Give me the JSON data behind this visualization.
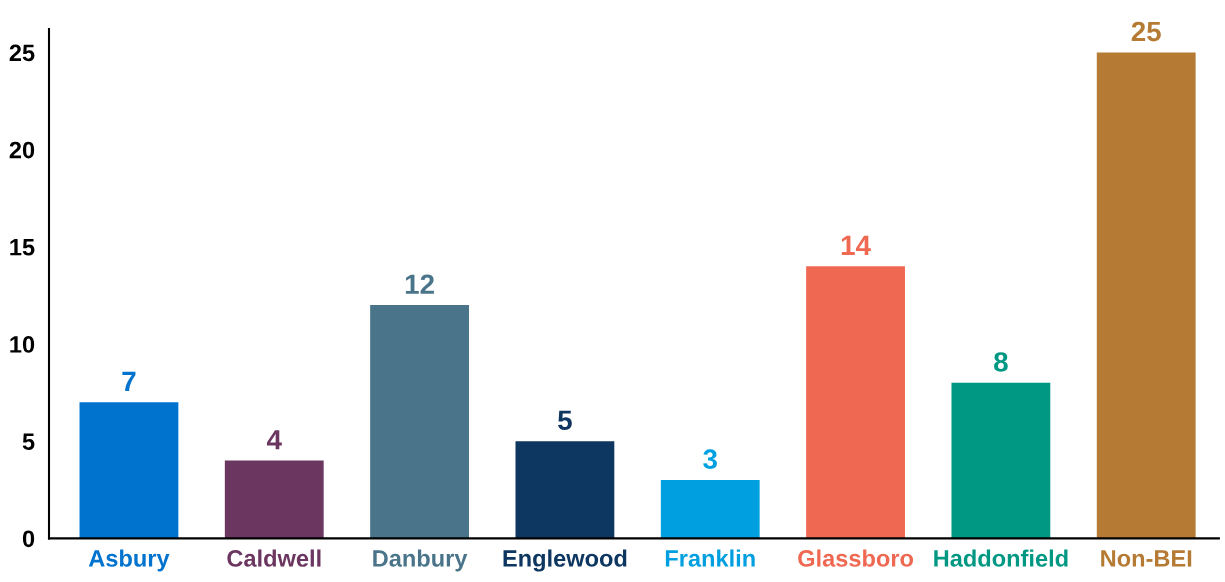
{
  "chart_data": {
    "type": "bar",
    "categories": [
      "Asbury",
      "Caldwell",
      "Danbury",
      "Englewood",
      "Franklin",
      "Glassboro",
      "Haddonfield",
      "Non-BEI"
    ],
    "values": [
      7,
      4,
      12,
      5,
      3,
      14,
      8,
      25
    ],
    "colors": [
      "#0073cf",
      "#6b3660",
      "#4a7489",
      "#0d3660",
      "#00a0e0",
      "#ef6852",
      "#009883",
      "#b57a34"
    ],
    "ylim": [
      0,
      26.2
    ],
    "yticks": [
      0,
      5,
      10,
      15,
      20,
      25
    ],
    "grid": false,
    "data_labels": true
  }
}
